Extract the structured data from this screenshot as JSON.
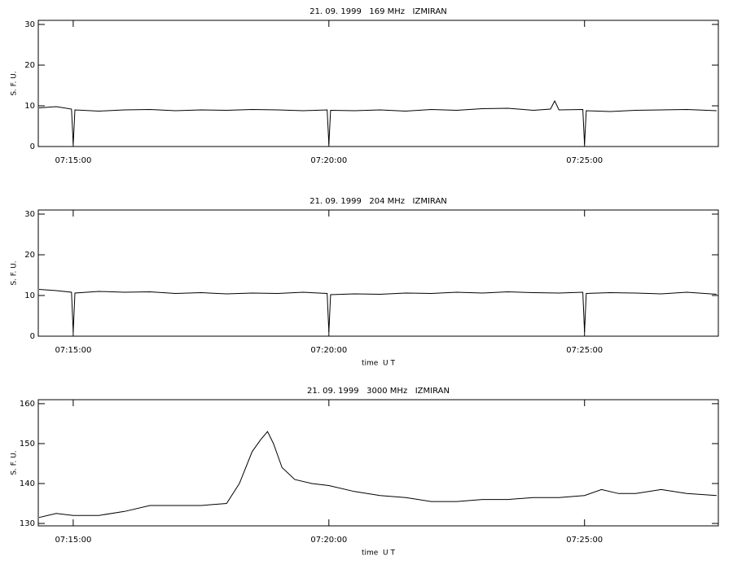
{
  "chart_data": [
    {
      "type": "line",
      "title": "21. 09. 1999   169 MHz   IZMIRAN",
      "ylabel": "S. F. U.",
      "x": [
        "07:14:20",
        "07:14:40",
        "07:14:58",
        "07:15:00",
        "07:15:02",
        "07:15:30",
        "07:16:00",
        "07:16:30",
        "07:17:00",
        "07:17:30",
        "07:18:00",
        "07:18:30",
        "07:19:00",
        "07:19:30",
        "07:19:58",
        "07:20:00",
        "07:20:02",
        "07:20:30",
        "07:21:00",
        "07:21:30",
        "07:22:00",
        "07:22:30",
        "07:23:00",
        "07:23:30",
        "07:24:00",
        "07:24:20",
        "07:24:25",
        "07:24:30",
        "07:24:58",
        "07:25:00",
        "07:25:02",
        "07:25:30",
        "07:26:00",
        "07:26:30",
        "07:27:00",
        "07:27:35"
      ],
      "values": [
        9.5,
        9.8,
        9.2,
        0.5,
        9.0,
        8.7,
        9.0,
        9.1,
        8.8,
        9.0,
        8.9,
        9.1,
        9.0,
        8.8,
        9.0,
        0.5,
        8.9,
        8.8,
        9.0,
        8.7,
        9.1,
        8.9,
        9.3,
        9.4,
        8.9,
        9.2,
        11.2,
        9.0,
        9.1,
        0.5,
        8.8,
        8.6,
        8.9,
        9.0,
        9.1,
        8.8
      ],
      "color": "#000000",
      "xlim": [
        "07:14:19",
        "07:27:37"
      ],
      "xticks": [
        "07:15:00",
        "07:20:00",
        "07:25:00"
      ],
      "ylim": [
        0,
        31
      ],
      "yticks": [
        0,
        10,
        20,
        30
      ]
    },
    {
      "type": "line",
      "title": "21. 09. 1999   204 MHz   IZMIRAN",
      "ylabel": "S. F. U.",
      "xlabel": "time  U T",
      "x": [
        "07:14:20",
        "07:14:40",
        "07:14:58",
        "07:15:00",
        "07:15:02",
        "07:15:30",
        "07:16:00",
        "07:16:30",
        "07:17:00",
        "07:17:30",
        "07:18:00",
        "07:18:30",
        "07:19:00",
        "07:19:30",
        "07:19:58",
        "07:20:00",
        "07:20:02",
        "07:20:30",
        "07:21:00",
        "07:21:30",
        "07:22:00",
        "07:22:30",
        "07:23:00",
        "07:23:30",
        "07:24:00",
        "07:24:30",
        "07:24:58",
        "07:25:00",
        "07:25:02",
        "07:25:30",
        "07:26:00",
        "07:26:30",
        "07:27:00",
        "07:27:35"
      ],
      "values": [
        11.5,
        11.2,
        10.8,
        1.0,
        10.6,
        11.0,
        10.8,
        10.9,
        10.5,
        10.7,
        10.4,
        10.6,
        10.5,
        10.8,
        10.5,
        1.0,
        10.2,
        10.4,
        10.3,
        10.6,
        10.5,
        10.8,
        10.6,
        10.9,
        10.7,
        10.6,
        10.8,
        1.0,
        10.5,
        10.7,
        10.6,
        10.4,
        10.8,
        10.3
      ],
      "color": "#000000",
      "xlim": [
        "07:14:19",
        "07:27:37"
      ],
      "xticks": [
        "07:15:00",
        "07:20:00",
        "07:25:00"
      ],
      "ylim": [
        0,
        31
      ],
      "yticks": [
        0,
        10,
        20,
        30
      ]
    },
    {
      "type": "line",
      "title": "21. 09. 1999   3000 MHz   IZMIRAN",
      "ylabel": "S. F. U.",
      "xlabel": "time  U T",
      "x": [
        "07:14:20",
        "07:14:40",
        "07:15:00",
        "07:15:30",
        "07:16:00",
        "07:16:30",
        "07:17:00",
        "07:17:30",
        "07:18:00",
        "07:18:15",
        "07:18:30",
        "07:18:40",
        "07:18:48",
        "07:18:55",
        "07:19:05",
        "07:19:20",
        "07:19:40",
        "07:20:00",
        "07:20:30",
        "07:21:00",
        "07:21:30",
        "07:22:00",
        "07:22:30",
        "07:23:00",
        "07:23:30",
        "07:24:00",
        "07:24:30",
        "07:25:00",
        "07:25:20",
        "07:25:40",
        "07:26:00",
        "07:26:30",
        "07:27:00",
        "07:27:35"
      ],
      "values": [
        131.5,
        132.5,
        132.0,
        132.0,
        133.0,
        134.5,
        134.5,
        134.5,
        135.0,
        140,
        148,
        151,
        153,
        150,
        144,
        141,
        140,
        139.5,
        138,
        137,
        136.5,
        135.5,
        135.5,
        136,
        136,
        136.5,
        136.5,
        137,
        138.5,
        137.5,
        137.5,
        138.5,
        137.5,
        137
      ],
      "color": "#000000",
      "xlim": [
        "07:14:19",
        "07:27:37"
      ],
      "xticks": [
        "07:15:00",
        "07:20:00",
        "07:25:00"
      ],
      "ylim": [
        129.4,
        161
      ],
      "yticks": [
        130,
        140,
        150,
        160
      ]
    }
  ]
}
